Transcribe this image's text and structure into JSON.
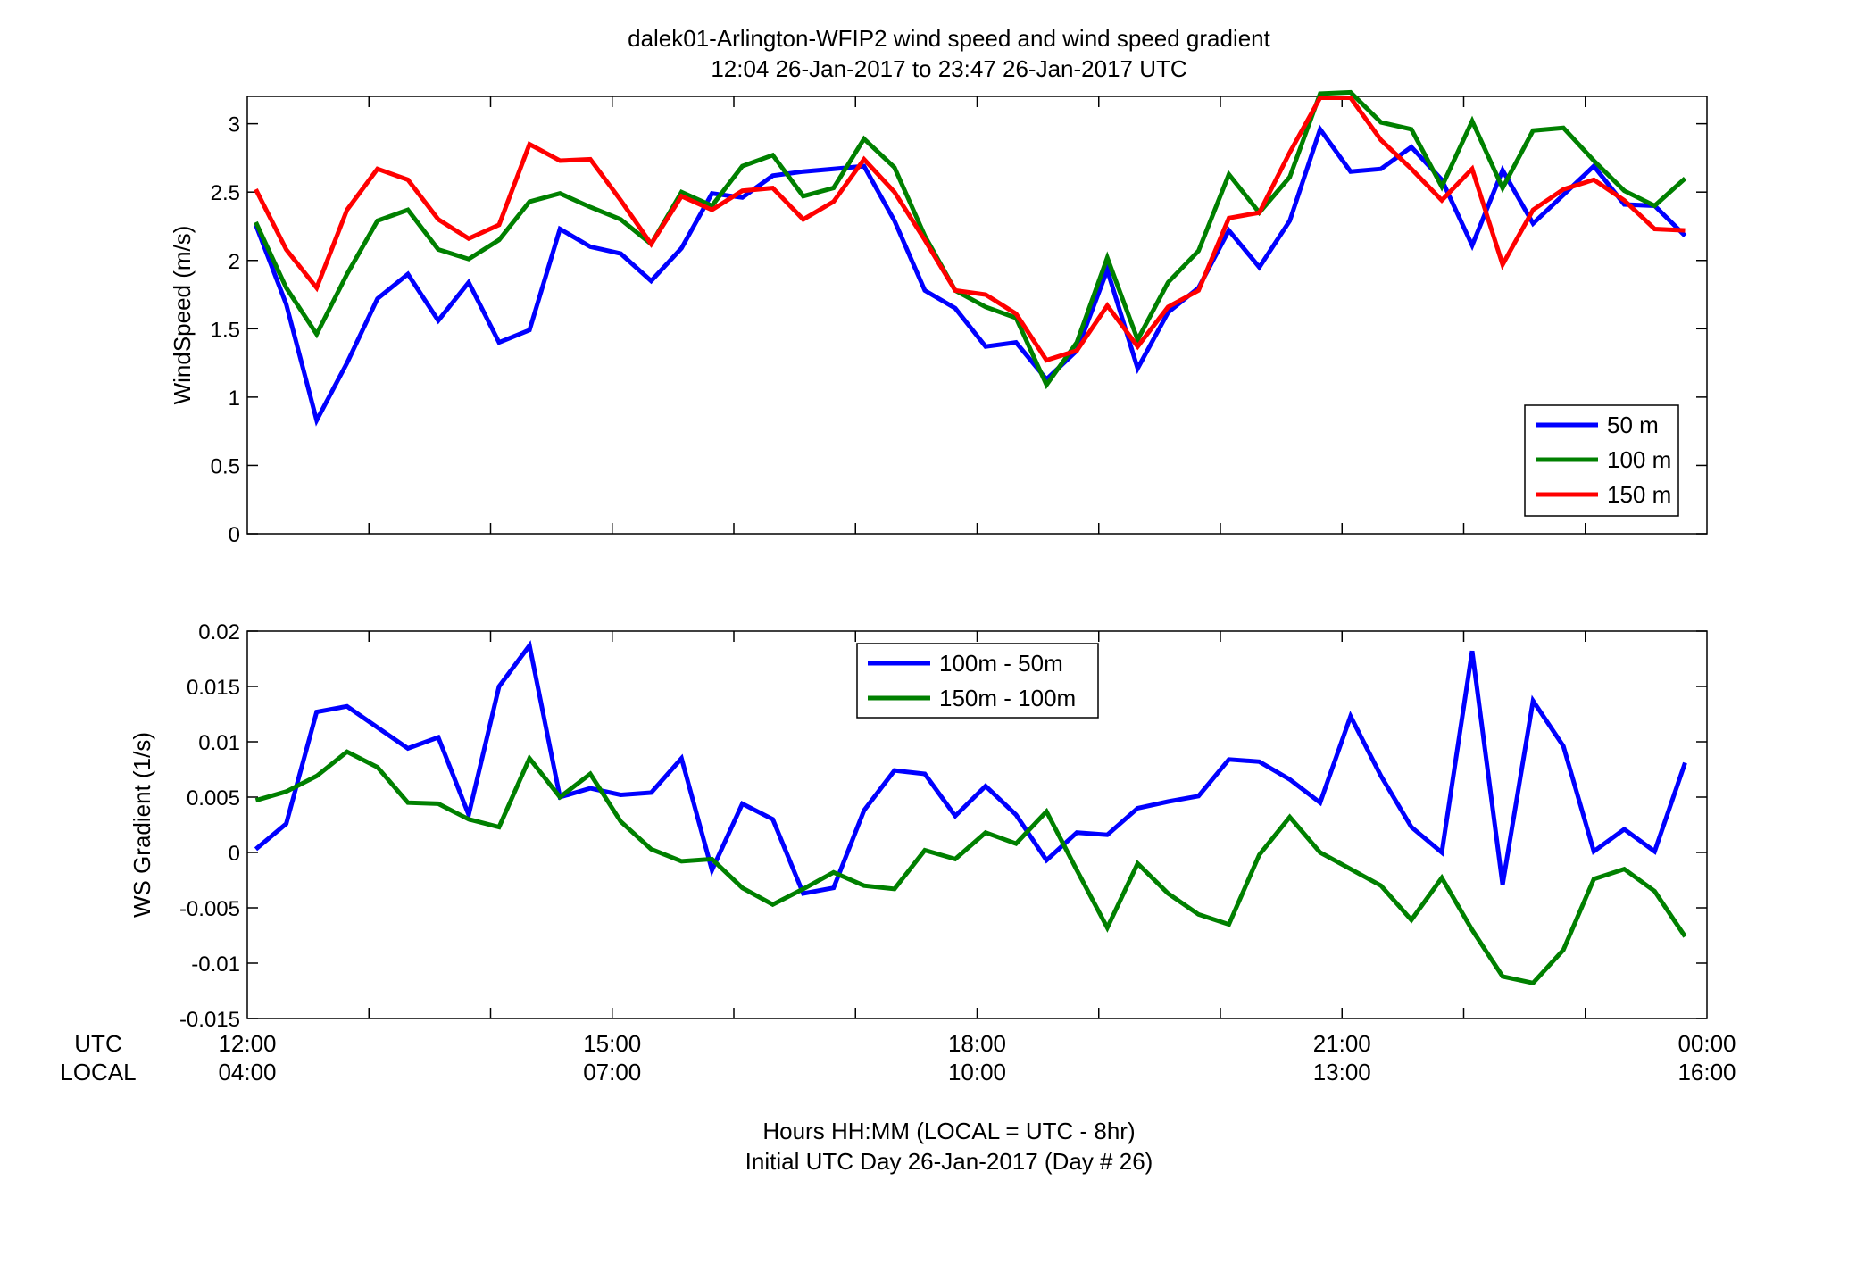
{
  "figure": {
    "title_line1": "dalek01-Arlington-WFIP2  wind speed and wind speed gradient",
    "title_line2": "12:04 26-Jan-2017 to 23:47 26-Jan-2017  UTC",
    "utc_label": "UTC",
    "local_label": "LOCAL",
    "xlabel_line1": "Hours HH:MM  (LOCAL = UTC - 8hr)",
    "xlabel_line2": "Initial UTC Day 26-Jan-2017 (Day # 26)",
    "x_ticks": [
      {
        "t": 12,
        "utc": "12:00",
        "local": "04:00"
      },
      {
        "t": 15,
        "utc": "15:00",
        "local": "07:00"
      },
      {
        "t": 18,
        "utc": "18:00",
        "local": "10:00"
      },
      {
        "t": 21,
        "utc": "21:00",
        "local": "13:00"
      },
      {
        "t": 24,
        "utc": "00:00",
        "local": "16:00"
      }
    ]
  },
  "chart_data": [
    {
      "type": "line",
      "ylabel": "WindSpeed (m/s)",
      "xlim": [
        12,
        24
      ],
      "ylim": [
        0,
        3.2
      ],
      "y_ticks": [
        0,
        0.5,
        1,
        1.5,
        2,
        2.5,
        3
      ],
      "y_tick_labels": [
        "0",
        "0.5",
        "1",
        "1.5",
        "2",
        "2.5",
        "3"
      ],
      "grid": false,
      "legend_position": "bottom-right",
      "x": [
        12.07,
        12.32,
        12.57,
        12.82,
        13.07,
        13.32,
        13.57,
        13.82,
        14.07,
        14.32,
        14.57,
        14.82,
        15.07,
        15.32,
        15.57,
        15.82,
        16.07,
        16.32,
        16.57,
        16.82,
        17.07,
        17.32,
        17.57,
        17.82,
        18.07,
        18.32,
        18.57,
        18.82,
        19.07,
        19.32,
        19.57,
        19.82,
        20.07,
        20.32,
        20.57,
        20.82,
        21.07,
        21.32,
        21.57,
        21.82,
        22.07,
        22.32,
        22.57,
        22.82,
        23.07,
        23.32,
        23.57,
        23.82
      ],
      "series": [
        {
          "name": "50 m",
          "color": "#0000ff",
          "values": [
            2.26,
            1.68,
            0.83,
            1.25,
            1.72,
            1.9,
            1.56,
            1.84,
            1.4,
            1.49,
            2.23,
            2.1,
            2.05,
            1.85,
            2.09,
            2.49,
            2.46,
            2.62,
            2.65,
            2.67,
            2.69,
            2.29,
            1.78,
            1.65,
            1.37,
            1.4,
            1.13,
            1.34,
            1.93,
            1.21,
            1.62,
            1.8,
            2.22,
            1.95,
            2.29,
            2.96,
            2.65,
            2.67,
            2.83,
            2.59,
            2.11,
            2.66,
            2.27,
            2.48,
            2.69,
            2.41,
            2.4,
            2.18
          ]
        },
        {
          "name": "100 m",
          "color": "#008000",
          "values": [
            2.28,
            1.8,
            1.46,
            1.9,
            2.29,
            2.37,
            2.08,
            2.01,
            2.15,
            2.43,
            2.49,
            2.39,
            2.3,
            2.12,
            2.5,
            2.4,
            2.69,
            2.77,
            2.47,
            2.53,
            2.89,
            2.68,
            2.18,
            1.78,
            1.66,
            1.58,
            1.09,
            1.4,
            2.02,
            1.42,
            1.84,
            2.07,
            2.63,
            2.35,
            2.61,
            3.22,
            3.23,
            3.01,
            2.96,
            2.54,
            3.02,
            2.53,
            2.95,
            2.97,
            2.73,
            2.51,
            2.4,
            2.6
          ]
        },
        {
          "name": "150 m",
          "color": "#ff0000",
          "values": [
            2.52,
            2.08,
            1.8,
            2.37,
            2.67,
            2.59,
            2.3,
            2.16,
            2.26,
            2.85,
            2.73,
            2.74,
            2.44,
            2.12,
            2.47,
            2.37,
            2.51,
            2.53,
            2.3,
            2.43,
            2.74,
            2.5,
            2.15,
            1.78,
            1.75,
            1.61,
            1.27,
            1.34,
            1.67,
            1.37,
            1.66,
            1.78,
            2.31,
            2.35,
            2.79,
            3.19,
            3.19,
            2.88,
            2.67,
            2.44,
            2.67,
            1.97,
            2.37,
            2.52,
            2.59,
            2.44,
            2.23,
            2.22
          ]
        }
      ]
    },
    {
      "type": "line",
      "ylabel": "WS Gradient (1/s)",
      "xlim": [
        12,
        24
      ],
      "ylim": [
        -0.015,
        0.02
      ],
      "y_ticks": [
        -0.015,
        -0.01,
        -0.005,
        0,
        0.005,
        0.01,
        0.015,
        0.02
      ],
      "y_tick_labels": [
        "-0.015",
        "-0.01",
        "-0.005",
        "0",
        "0.005",
        "0.01",
        "0.015",
        "0.02"
      ],
      "grid": false,
      "legend_position": "top-center",
      "x": [
        12.07,
        12.32,
        12.57,
        12.82,
        13.07,
        13.32,
        13.57,
        13.82,
        14.07,
        14.32,
        14.57,
        14.82,
        15.07,
        15.32,
        15.57,
        15.82,
        16.07,
        16.32,
        16.57,
        16.82,
        17.07,
        17.32,
        17.57,
        17.82,
        18.07,
        18.32,
        18.57,
        18.82,
        19.07,
        19.32,
        19.57,
        19.82,
        20.07,
        20.32,
        20.57,
        20.82,
        21.07,
        21.32,
        21.57,
        21.82,
        22.07,
        22.32,
        22.57,
        22.82,
        23.07,
        23.32,
        23.57,
        23.82
      ],
      "series": [
        {
          "name": "100m - 50m",
          "color": "#0000ff",
          "values": [
            0.0003,
            0.0026,
            0.0127,
            0.0132,
            0.0113,
            0.0094,
            0.0104,
            0.0034,
            0.015,
            0.0187,
            0.005,
            0.0058,
            0.0052,
            0.0054,
            0.0085,
            -0.0016,
            0.0044,
            0.003,
            -0.0037,
            -0.0032,
            0.0038,
            0.0074,
            0.0071,
            0.0033,
            0.006,
            0.0034,
            -0.0007,
            0.0018,
            0.0016,
            0.004,
            0.0046,
            0.0051,
            0.0084,
            0.0082,
            0.0066,
            0.0045,
            0.0123,
            0.0069,
            0.0023,
            0.0,
            0.0182,
            -0.0029,
            0.0137,
            0.0096,
            0.0001,
            0.0021,
            0.0001,
            0.0081
          ]
        },
        {
          "name": "150m - 100m",
          "color": "#008000",
          "values": [
            0.0047,
            0.0055,
            0.0069,
            0.0091,
            0.0077,
            0.0045,
            0.0044,
            0.003,
            0.0023,
            0.0085,
            0.005,
            0.0071,
            0.0028,
            0.0003,
            -0.0008,
            -0.0006,
            -0.0032,
            -0.0047,
            -0.0033,
            -0.0018,
            -0.003,
            -0.0033,
            0.0002,
            -0.0006,
            0.0018,
            0.0008,
            0.0037,
            -0.0016,
            -0.0068,
            -0.001,
            -0.0037,
            -0.0056,
            -0.0065,
            -0.0002,
            0.0032,
            0.0,
            -0.0015,
            -0.003,
            -0.0061,
            -0.0023,
            -0.007,
            -0.0112,
            -0.0118,
            -0.0088,
            -0.0024,
            -0.0015,
            -0.0035,
            -0.0076
          ]
        }
      ]
    }
  ]
}
